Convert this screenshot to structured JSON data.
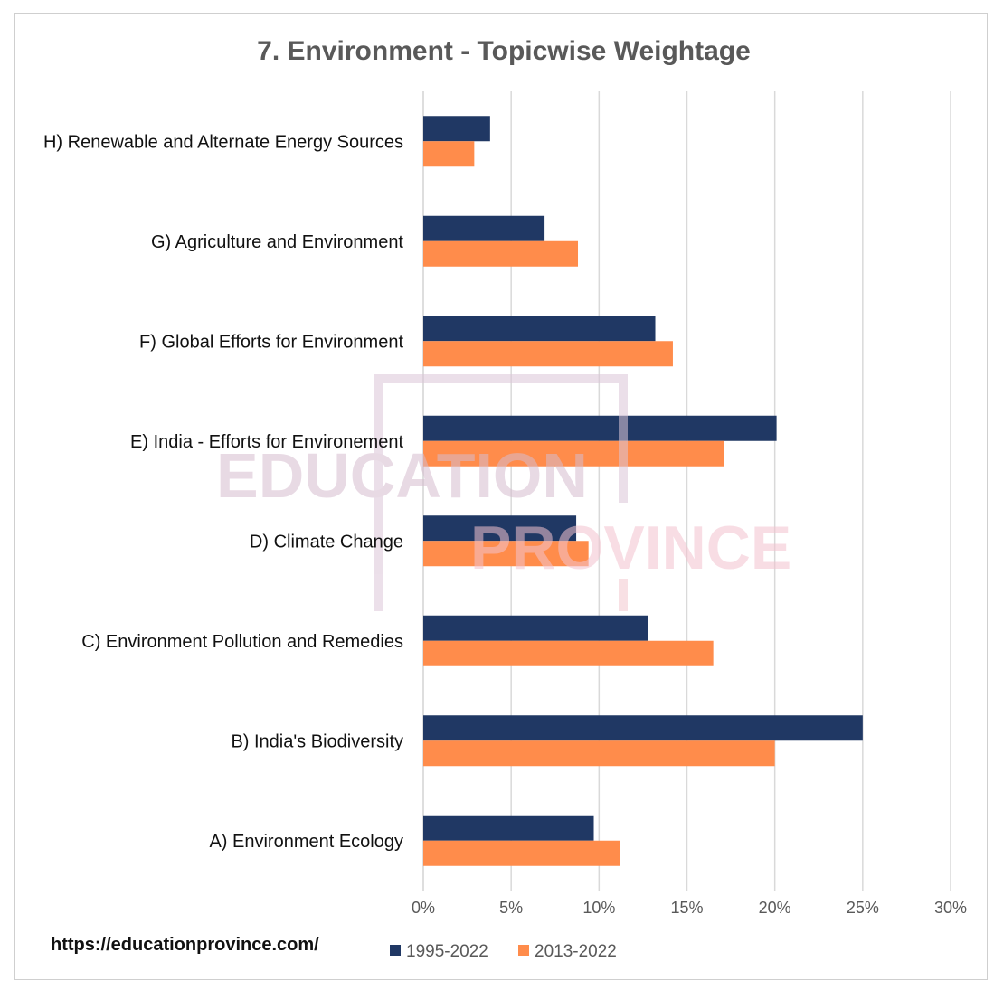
{
  "chart_data": {
    "type": "bar",
    "orientation": "horizontal",
    "title": "7. Environment - Topicwise Weightage",
    "categories": [
      "A) Environment Ecology",
      "B) India's Biodiversity",
      "C) Environment Pollution and Remedies",
      "D) Climate Change",
      "E) India - Efforts for Environement",
      "F) Global Efforts for Environment",
      "G) Agriculture and Environment",
      "H) Renewable and Alternate Energy Sources"
    ],
    "series": [
      {
        "name": "1995-2022",
        "color": "#203864",
        "values": [
          9.7,
          25.0,
          12.8,
          8.7,
          20.1,
          13.2,
          6.9,
          3.8
        ]
      },
      {
        "name": "2013-2022",
        "color": "#FF8C4B",
        "values": [
          11.2,
          20.0,
          16.5,
          9.4,
          17.1,
          14.2,
          8.8,
          2.9
        ]
      }
    ],
    "xlim": [
      0,
      30
    ],
    "xticks": [
      0,
      5,
      10,
      15,
      20,
      25,
      30
    ],
    "xtick_labels": [
      "0%",
      "5%",
      "10%",
      "15%",
      "20%",
      "25%",
      "30%"
    ],
    "grid": "vertical",
    "legend_position": "bottom",
    "xlabel": "",
    "ylabel": ""
  },
  "footer": {
    "url": "https://educationprovince.com/"
  },
  "watermark": {
    "line1": "EDUCATION",
    "line2": "PROVINCE"
  }
}
